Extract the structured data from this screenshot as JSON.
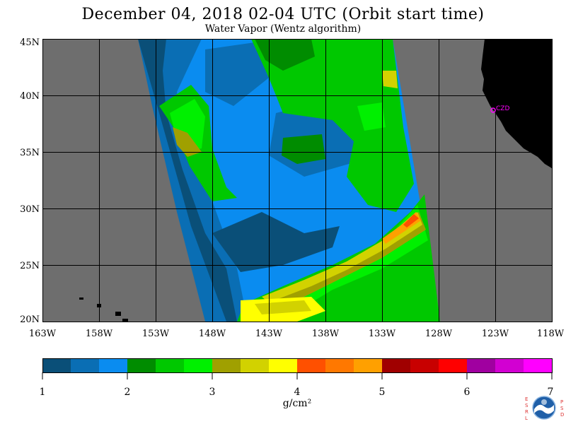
{
  "title": "December 04, 2018  02-04 UTC  (Orbit start time)",
  "subtitle": "Water Vapor (Wentz algorithm)",
  "map": {
    "lat_labels": [
      "45N",
      "40N",
      "35N",
      "30N",
      "25N",
      "20N"
    ],
    "lon_labels": [
      "163W",
      "158W",
      "153W",
      "148W",
      "143W",
      "138W",
      "133W",
      "128W",
      "123W",
      "118W"
    ],
    "station_label": "CZD",
    "colors": {
      "background_gray": "#6e6e6e",
      "land": "#000000",
      "grid": "#000000",
      "station": "#ff00ff"
    }
  },
  "colorbar": {
    "ticks": [
      "1",
      "2",
      "3",
      "4",
      "5",
      "6",
      "7"
    ],
    "units": "g/cm²",
    "colors": [
      "#0a4f78",
      "#0a6eb4",
      "#0a8cf0",
      "#008c00",
      "#00c800",
      "#00f000",
      "#a0a000",
      "#d2d200",
      "#ffff00",
      "#ff5000",
      "#ff7800",
      "#ffa000",
      "#a00000",
      "#c80000",
      "#ff0000",
      "#a000a0",
      "#d200d2",
      "#ff00ff"
    ]
  },
  "logo": {
    "left_letters": "ESRL",
    "right_letters": "PSD",
    "center_text": "NOAA"
  }
}
